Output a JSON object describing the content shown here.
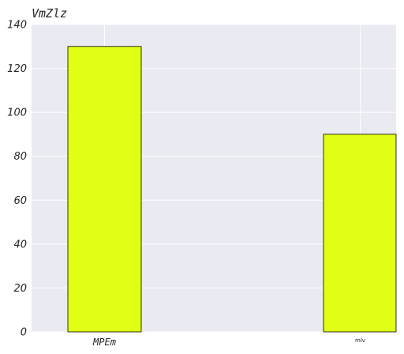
{
  "chart_data": {
    "type": "bar",
    "title": "VmZlz",
    "xlabel": "",
    "ylabel": "",
    "categories": [
      "MPEm",
      "mlv"
    ],
    "values": [
      130,
      90
    ],
    "ylim": [
      0,
      140
    ],
    "yticks": [
      0,
      20,
      40,
      60,
      80,
      100,
      120,
      140
    ],
    "grid": true,
    "legend": "none",
    "colors": {
      "plot_background": "#eaeaf2",
      "bar_fill": "#e1ff14",
      "bar_edge": "#000000",
      "grid": "#ffffff",
      "text": "#262626"
    }
  }
}
